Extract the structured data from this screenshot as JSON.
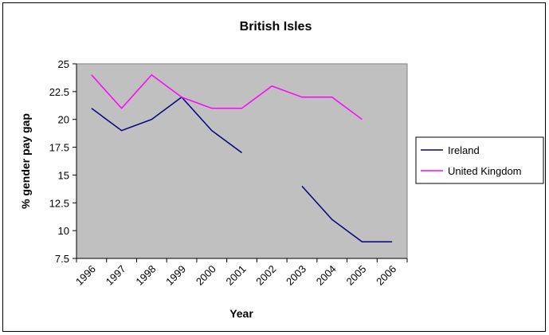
{
  "chart_data": {
    "type": "line",
    "title": "British Isles",
    "xlabel": "Year",
    "ylabel": "% gender pay gap",
    "categories": [
      "1996",
      "1997",
      "1998",
      "1999",
      "2000",
      "2001",
      "2002",
      "2003",
      "2004",
      "2005",
      "2006"
    ],
    "yticks": [
      "7.5",
      "10",
      "12.5",
      "15",
      "17.5",
      "20",
      "22.5",
      "25"
    ],
    "ylim": [
      7.5,
      25
    ],
    "plot_background": "#c0c0c0",
    "legend_position": "right",
    "series": [
      {
        "name": "Ireland",
        "color": "#000080",
        "values": [
          21,
          19,
          20,
          22,
          19,
          17,
          null,
          14,
          11,
          9,
          9
        ]
      },
      {
        "name": "United Kingdom",
        "color": "#ff00ff",
        "values": [
          24,
          21,
          24,
          22,
          21,
          21,
          23,
          22,
          22,
          20,
          null
        ]
      }
    ]
  }
}
